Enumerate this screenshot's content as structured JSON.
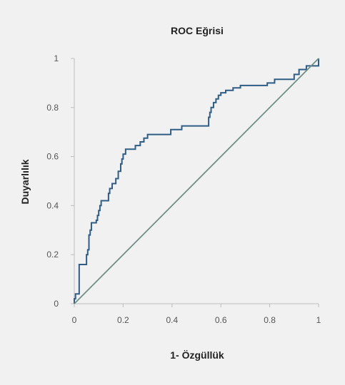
{
  "chart_data": {
    "type": "line",
    "title": "ROC Eğrisi",
    "xlabel": "1- Özgüllük",
    "ylabel": "Duyarlılık",
    "xlim": [
      0,
      1
    ],
    "ylim": [
      0,
      1
    ],
    "x_ticks": [
      "0",
      "0.2",
      "0.4",
      "0.6",
      "0.8",
      "1"
    ],
    "y_ticks": [
      "0",
      "0.2",
      "0.4",
      "0.6",
      "0.8",
      "1"
    ],
    "grid": false,
    "legend": "none",
    "colors": {
      "curve": "#2f5d86",
      "reference": "#6f8f87",
      "axis": "#bdbdbd",
      "background": "#f1f1f1"
    },
    "series": [
      {
        "style": "step",
        "points": [
          [
            0,
            0
          ],
          [
            0,
            0.02
          ],
          [
            0.005,
            0.02
          ],
          [
            0.005,
            0.04
          ],
          [
            0.02,
            0.04
          ],
          [
            0.02,
            0.16
          ],
          [
            0.05,
            0.16
          ],
          [
            0.05,
            0.2
          ],
          [
            0.055,
            0.2
          ],
          [
            0.055,
            0.22
          ],
          [
            0.06,
            0.22
          ],
          [
            0.06,
            0.28
          ],
          [
            0.065,
            0.28
          ],
          [
            0.065,
            0.3
          ],
          [
            0.07,
            0.3
          ],
          [
            0.07,
            0.33
          ],
          [
            0.09,
            0.33
          ],
          [
            0.09,
            0.34
          ],
          [
            0.095,
            0.34
          ],
          [
            0.095,
            0.36
          ],
          [
            0.1,
            0.36
          ],
          [
            0.1,
            0.38
          ],
          [
            0.105,
            0.38
          ],
          [
            0.105,
            0.4
          ],
          [
            0.11,
            0.4
          ],
          [
            0.11,
            0.42
          ],
          [
            0.14,
            0.42
          ],
          [
            0.14,
            0.45
          ],
          [
            0.145,
            0.45
          ],
          [
            0.145,
            0.47
          ],
          [
            0.155,
            0.47
          ],
          [
            0.155,
            0.49
          ],
          [
            0.17,
            0.49
          ],
          [
            0.17,
            0.51
          ],
          [
            0.18,
            0.51
          ],
          [
            0.18,
            0.54
          ],
          [
            0.19,
            0.54
          ],
          [
            0.19,
            0.57
          ],
          [
            0.195,
            0.57
          ],
          [
            0.195,
            0.59
          ],
          [
            0.2,
            0.59
          ],
          [
            0.2,
            0.61
          ],
          [
            0.21,
            0.61
          ],
          [
            0.21,
            0.63
          ],
          [
            0.25,
            0.63
          ],
          [
            0.25,
            0.645
          ],
          [
            0.27,
            0.645
          ],
          [
            0.27,
            0.66
          ],
          [
            0.285,
            0.66
          ],
          [
            0.285,
            0.675
          ],
          [
            0.3,
            0.675
          ],
          [
            0.3,
            0.69
          ],
          [
            0.395,
            0.69
          ],
          [
            0.395,
            0.71
          ],
          [
            0.44,
            0.71
          ],
          [
            0.44,
            0.725
          ],
          [
            0.55,
            0.725
          ],
          [
            0.55,
            0.76
          ],
          [
            0.555,
            0.76
          ],
          [
            0.555,
            0.78
          ],
          [
            0.56,
            0.78
          ],
          [
            0.56,
            0.8
          ],
          [
            0.57,
            0.8
          ],
          [
            0.57,
            0.82
          ],
          [
            0.58,
            0.82
          ],
          [
            0.58,
            0.835
          ],
          [
            0.59,
            0.835
          ],
          [
            0.59,
            0.85
          ],
          [
            0.6,
            0.85
          ],
          [
            0.6,
            0.86
          ],
          [
            0.62,
            0.86
          ],
          [
            0.62,
            0.87
          ],
          [
            0.65,
            0.87
          ],
          [
            0.65,
            0.88
          ],
          [
            0.68,
            0.88
          ],
          [
            0.68,
            0.89
          ],
          [
            0.79,
            0.89
          ],
          [
            0.79,
            0.9
          ],
          [
            0.82,
            0.9
          ],
          [
            0.82,
            0.915
          ],
          [
            0.9,
            0.915
          ],
          [
            0.9,
            0.935
          ],
          [
            0.92,
            0.935
          ],
          [
            0.92,
            0.955
          ],
          [
            0.95,
            0.955
          ],
          [
            0.95,
            0.97
          ],
          [
            1.0,
            0.97
          ],
          [
            1.0,
            1.0
          ]
        ]
      },
      {
        "style": "line",
        "points": [
          [
            0,
            0
          ],
          [
            1,
            1
          ]
        ]
      }
    ]
  }
}
